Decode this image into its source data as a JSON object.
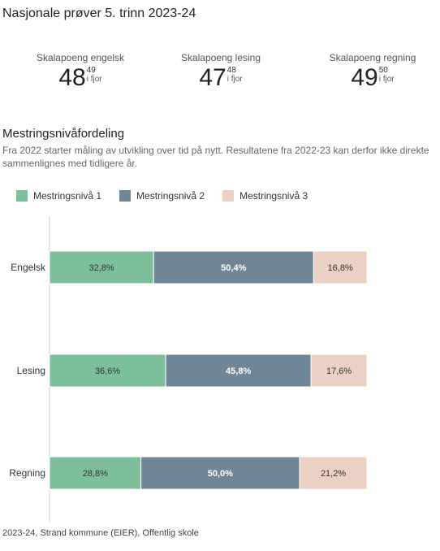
{
  "title": "Nasjonale prøver 5. trinn 2023-24",
  "kpis": [
    {
      "label": "Skalapoeng engelsk",
      "value": "48",
      "previous": "49",
      "previous_label": "i fjor"
    },
    {
      "label": "Skalapoeng lesing",
      "value": "47",
      "previous": "48",
      "previous_label": "i fjor"
    },
    {
      "label": "Skalapoeng regning",
      "value": "49",
      "previous": "50",
      "previous_label": "i fjor"
    }
  ],
  "section": {
    "title": "Mestringsnivåfordeling",
    "note": "Fra 2022 starter måling av utvikling over tid på nytt. Resultatene fra 2022-23 kan derfor ikke direkte sammenlignes med tidligere år."
  },
  "chart_data": {
    "type": "bar",
    "orientation": "horizontal",
    "stacked": true,
    "categories": [
      "Engelsk",
      "Lesing",
      "Regning"
    ],
    "series": [
      {
        "name": "Mestringsnivå 1",
        "color": "#7dbf9b",
        "values": [
          32.8,
          36.6,
          28.8
        ],
        "value_labels": [
          "32,8%",
          "36,6%",
          "28,8%"
        ],
        "label_color": "#333333"
      },
      {
        "name": "Mestringsnivå 2",
        "color": "#6e8698",
        "values": [
          50.4,
          45.8,
          50.0
        ],
        "value_labels": [
          "50,4%",
          "45,8%",
          "50,0%"
        ],
        "label_color": "#ffffff"
      },
      {
        "name": "Mestringsnivå 3",
        "color": "#ecd0c3",
        "values": [
          16.8,
          17.6,
          21.2
        ],
        "value_labels": [
          "16,8%",
          "17,6%",
          "21,2%"
        ],
        "label_color": "#333333"
      }
    ],
    "xlim": [
      0,
      100
    ],
    "legend_position": "top-left",
    "grid": false
  },
  "footer": "2023-24, Strand kommune (EIER), Offentlig skole"
}
